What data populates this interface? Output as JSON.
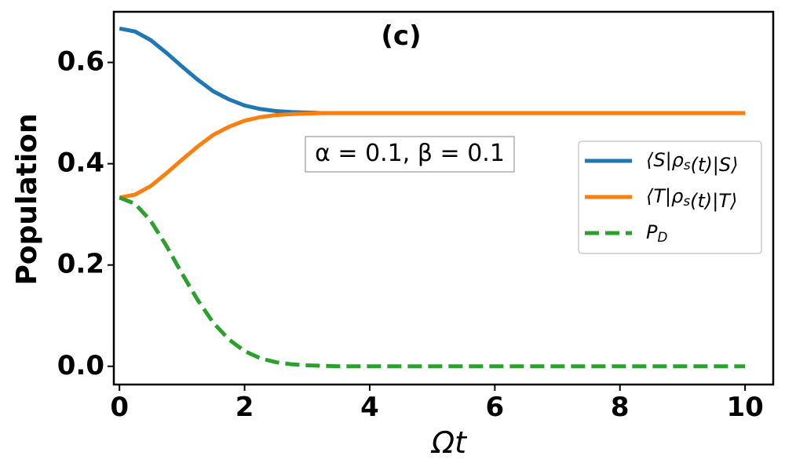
{
  "chart_data": {
    "type": "line",
    "title": "(c)",
    "xlabel": "Ωt",
    "ylabel": "Population",
    "annotation": "α = 0.1, β = 0.1",
    "x": [
      0,
      0.25,
      0.5,
      0.75,
      1,
      1.25,
      1.5,
      1.75,
      2,
      2.25,
      2.5,
      2.75,
      3,
      3.25,
      3.5,
      3.75,
      4,
      5,
      6,
      7,
      8,
      9,
      10
    ],
    "series": [
      {
        "name": "⟨S|ρ_s(t)|S⟩",
        "color": "#1f77b4",
        "dashed": false,
        "values": [
          0.667,
          0.661,
          0.644,
          0.619,
          0.592,
          0.566,
          0.543,
          0.527,
          0.515,
          0.508,
          0.504,
          0.502,
          0.501,
          0.5,
          0.5,
          0.5,
          0.5,
          0.5,
          0.5,
          0.5,
          0.5,
          0.5,
          0.5
        ]
      },
      {
        "name": "⟨T|ρ_s(t)|T⟩",
        "color": "#ff7f0e",
        "dashed": false,
        "values": [
          0.333,
          0.339,
          0.356,
          0.381,
          0.408,
          0.434,
          0.457,
          0.473,
          0.485,
          0.492,
          0.496,
          0.498,
          0.499,
          0.5,
          0.5,
          0.5,
          0.5,
          0.5,
          0.5,
          0.5,
          0.5,
          0.5,
          0.5
        ]
      },
      {
        "name": "P_D",
        "color": "#2ca02c",
        "dashed": true,
        "values": [
          0.333,
          0.321,
          0.287,
          0.238,
          0.183,
          0.131,
          0.086,
          0.053,
          0.03,
          0.016,
          0.008,
          0.004,
          0.002,
          0.001,
          0,
          0,
          0,
          0,
          0,
          0,
          0,
          0,
          0
        ]
      }
    ],
    "xlim": [
      -0.09,
      10.45
    ],
    "ylim": [
      -0.036,
      0.7
    ],
    "xticks": [
      0,
      2,
      4,
      6,
      8,
      10
    ],
    "yticks": [
      {
        "value": 0,
        "label": "0.0"
      },
      0.2,
      0.4,
      0.6
    ],
    "legend": "right"
  }
}
